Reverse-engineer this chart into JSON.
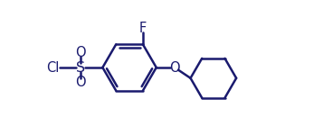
{
  "line_color": "#1a1a6e",
  "line_width": 1.8,
  "background": "#ffffff",
  "font_size": 10.5,
  "label_color": "#1a1a6e",
  "figsize": [
    3.57,
    1.5
  ],
  "dpi": 100,
  "xlim": [
    0,
    10.5
  ],
  "ylim": [
    0,
    4.0
  ]
}
